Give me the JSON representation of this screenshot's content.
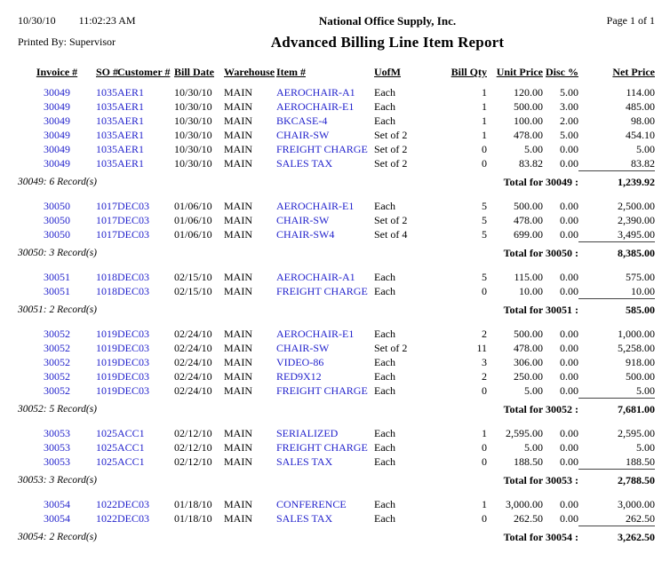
{
  "header": {
    "date": "10/30/10",
    "time": "11:02:23 AM",
    "company": "National Office Supply, Inc.",
    "page": "Page 1 of 1",
    "printed_by": "Printed By: Supervisor",
    "title": "Advanced Billing Line Item Report"
  },
  "table": {
    "columns": [
      "Invoice #",
      "SO #",
      "Customer #",
      "Bill Date",
      "Warehouse",
      "Item #",
      "UofM",
      "Bill Qty",
      "Unit Price",
      "Disc %",
      "Net Price"
    ],
    "groups": [
      {
        "rows": [
          [
            "30049",
            "1035",
            "AER1",
            "10/30/10",
            "MAIN",
            "AEROCHAIR-A1",
            "Each",
            "1",
            "120.00",
            "5.00",
            "114.00"
          ],
          [
            "30049",
            "1035",
            "AER1",
            "10/30/10",
            "MAIN",
            "AEROCHAIR-E1",
            "Each",
            "1",
            "500.00",
            "3.00",
            "485.00"
          ],
          [
            "30049",
            "1035",
            "AER1",
            "10/30/10",
            "MAIN",
            "BKCASE-4",
            "Each",
            "1",
            "100.00",
            "2.00",
            "98.00"
          ],
          [
            "30049",
            "1035",
            "AER1",
            "10/30/10",
            "MAIN",
            "CHAIR-SW",
            "Set of 2",
            "1",
            "478.00",
            "5.00",
            "454.10"
          ],
          [
            "30049",
            "1035",
            "AER1",
            "10/30/10",
            "MAIN",
            "FREIGHT CHARGE",
            "Set of 2",
            "0",
            "5.00",
            "0.00",
            "5.00"
          ],
          [
            "30049",
            "1035",
            "AER1",
            "10/30/10",
            "MAIN",
            "SALES TAX",
            "Set of 2",
            "0",
            "83.82",
            "0.00",
            "83.82"
          ]
        ],
        "records_label": "30049: 6 Record(s)",
        "total_label": "Total for 30049 :",
        "total_value": "1,239.92"
      },
      {
        "rows": [
          [
            "30050",
            "1017",
            "DEC03",
            "01/06/10",
            "MAIN",
            "AEROCHAIR-E1",
            "Each",
            "5",
            "500.00",
            "0.00",
            "2,500.00"
          ],
          [
            "30050",
            "1017",
            "DEC03",
            "01/06/10",
            "MAIN",
            "CHAIR-SW",
            "Set of 2",
            "5",
            "478.00",
            "0.00",
            "2,390.00"
          ],
          [
            "30050",
            "1017",
            "DEC03",
            "01/06/10",
            "MAIN",
            "CHAIR-SW4",
            "Set of 4",
            "5",
            "699.00",
            "0.00",
            "3,495.00"
          ]
        ],
        "records_label": "30050: 3 Record(s)",
        "total_label": "Total for 30050 :",
        "total_value": "8,385.00"
      },
      {
        "rows": [
          [
            "30051",
            "1018",
            "DEC03",
            "02/15/10",
            "MAIN",
            "AEROCHAIR-A1",
            "Each",
            "5",
            "115.00",
            "0.00",
            "575.00"
          ],
          [
            "30051",
            "1018",
            "DEC03",
            "02/15/10",
            "MAIN",
            "FREIGHT CHARGE",
            "Each",
            "0",
            "10.00",
            "0.00",
            "10.00"
          ]
        ],
        "records_label": "30051: 2 Record(s)",
        "total_label": "Total for 30051 :",
        "total_value": "585.00"
      },
      {
        "rows": [
          [
            "30052",
            "1019",
            "DEC03",
            "02/24/10",
            "MAIN",
            "AEROCHAIR-E1",
            "Each",
            "2",
            "500.00",
            "0.00",
            "1,000.00"
          ],
          [
            "30052",
            "1019",
            "DEC03",
            "02/24/10",
            "MAIN",
            "CHAIR-SW",
            "Set of 2",
            "11",
            "478.00",
            "0.00",
            "5,258.00"
          ],
          [
            "30052",
            "1019",
            "DEC03",
            "02/24/10",
            "MAIN",
            "VIDEO-86",
            "Each",
            "3",
            "306.00",
            "0.00",
            "918.00"
          ],
          [
            "30052",
            "1019",
            "DEC03",
            "02/24/10",
            "MAIN",
            "RED9X12",
            "Each",
            "2",
            "250.00",
            "0.00",
            "500.00"
          ],
          [
            "30052",
            "1019",
            "DEC03",
            "02/24/10",
            "MAIN",
            "FREIGHT CHARGE",
            "Each",
            "0",
            "5.00",
            "0.00",
            "5.00"
          ]
        ],
        "records_label": "30052: 5 Record(s)",
        "total_label": "Total for 30052 :",
        "total_value": "7,681.00"
      },
      {
        "rows": [
          [
            "30053",
            "1025",
            "ACC1",
            "02/12/10",
            "MAIN",
            "SERIALIZED",
            "Each",
            "1",
            "2,595.00",
            "0.00",
            "2,595.00"
          ],
          [
            "30053",
            "1025",
            "ACC1",
            "02/12/10",
            "MAIN",
            "FREIGHT CHARGE",
            "Each",
            "0",
            "5.00",
            "0.00",
            "5.00"
          ],
          [
            "30053",
            "1025",
            "ACC1",
            "02/12/10",
            "MAIN",
            "SALES TAX",
            "Each",
            "0",
            "188.50",
            "0.00",
            "188.50"
          ]
        ],
        "records_label": "30053: 3 Record(s)",
        "total_label": "Total for 30053 :",
        "total_value": "2,788.50"
      },
      {
        "rows": [
          [
            "30054",
            "1022",
            "DEC03",
            "01/18/10",
            "MAIN",
            "CONFERENCE",
            "Each",
            "1",
            "3,000.00",
            "0.00",
            "3,000.00"
          ],
          [
            "30054",
            "1022",
            "DEC03",
            "01/18/10",
            "MAIN",
            "SALES TAX",
            "Each",
            "0",
            "262.50",
            "0.00",
            "262.50"
          ]
        ],
        "records_label": "30054: 2 Record(s)",
        "total_label": "Total for 30054 :",
        "total_value": "3,262.50"
      }
    ]
  }
}
